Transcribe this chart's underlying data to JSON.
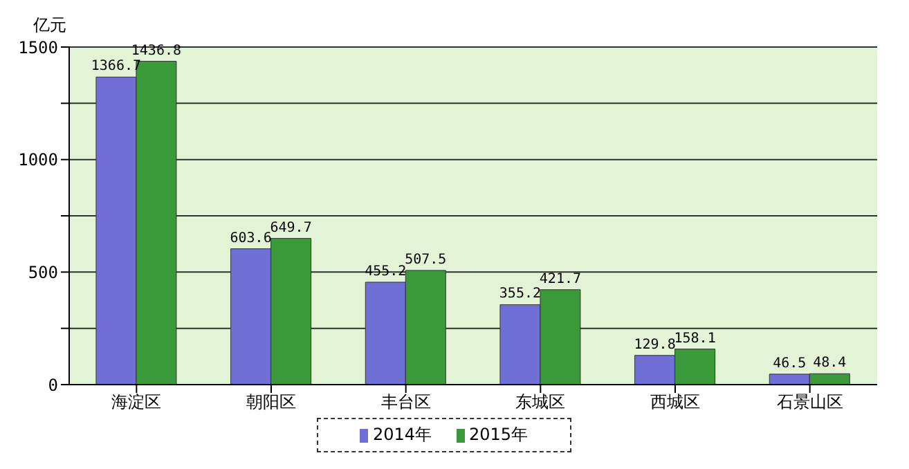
{
  "chart_data": {
    "type": "bar",
    "ylabel": "亿元",
    "categories": [
      "海淀区",
      "朝阳区",
      "丰台区",
      "东城区",
      "西城区",
      "石景山区"
    ],
    "series": [
      {
        "name": "2014年",
        "color": "#6f6fd6",
        "values": [
          1366.7,
          603.6,
          455.2,
          355.2,
          129.8,
          46.5
        ]
      },
      {
        "name": "2015年",
        "color": "#3a9a3a",
        "values": [
          1436.8,
          649.7,
          507.5,
          421.7,
          158.1,
          48.4
        ]
      }
    ],
    "ylim": [
      0,
      1500
    ],
    "yticks": [
      0,
      {
        "value": 250,
        "label": null
      },
      500,
      {
        "value": 750,
        "label": null
      },
      1000,
      {
        "value": 1250,
        "label": null
      },
      1500
    ],
    "grid": "y",
    "legend": "bottom",
    "data_labels": true
  }
}
